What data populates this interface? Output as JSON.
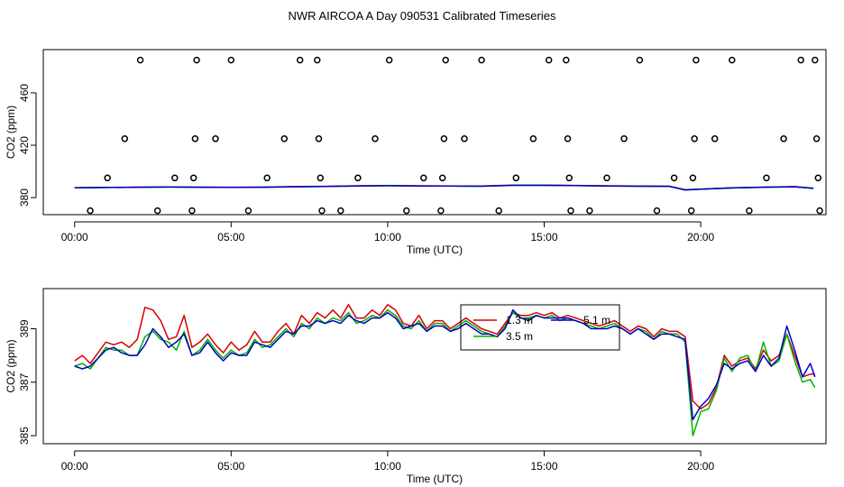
{
  "title": "NWR AIRCOA A  Day 090531  Calibrated Timeseries",
  "chart_data": [
    {
      "type": "line",
      "xlabel": "Time (UTC)",
      "ylabel": "CO2 (ppm)",
      "xlim": [
        -1.0,
        24.0
      ],
      "ylim": [
        367,
        493
      ],
      "xticks": [
        0,
        5,
        10,
        15,
        20
      ],
      "xtick_labels": [
        "00:00",
        "05:00",
        "10:00",
        "15:00",
        "20:00"
      ],
      "yticks": [
        380,
        420,
        460
      ],
      "ytick_labels": [
        "380",
        "420",
        "460"
      ],
      "series": [
        {
          "name": "1.3 m",
          "color": "#d40000",
          "x": [
            0,
            1,
            2,
            3,
            4,
            5,
            6,
            7,
            8,
            9,
            10,
            11,
            12,
            13,
            14,
            15,
            16,
            17,
            18,
            19,
            19.5,
            20,
            21,
            22,
            23,
            23.6
          ],
          "values": [
            387.6,
            387.8,
            388.0,
            388.2,
            388.0,
            387.9,
            388.0,
            388.4,
            388.6,
            389.0,
            389.2,
            389.0,
            388.9,
            388.8,
            389.5,
            389.5,
            389.3,
            389.0,
            388.8,
            388.7,
            386.0,
            386.5,
            387.5,
            388.0,
            388.4,
            387.2
          ]
        },
        {
          "name": "3.5 m",
          "color": "#00b000",
          "x": [
            0,
            1,
            2,
            3,
            4,
            5,
            6,
            7,
            8,
            9,
            10,
            11,
            12,
            13,
            14,
            15,
            16,
            17,
            18,
            19,
            19.5,
            20,
            21,
            22,
            23,
            23.6
          ],
          "values": [
            387.5,
            387.7,
            387.9,
            388.1,
            387.9,
            387.8,
            387.9,
            388.3,
            388.5,
            388.9,
            389.1,
            388.9,
            388.8,
            388.7,
            389.4,
            389.4,
            389.2,
            388.9,
            388.7,
            388.6,
            385.8,
            386.4,
            387.4,
            387.9,
            388.3,
            387.0
          ]
        },
        {
          "name": "5.1 m",
          "color": "#0000c8",
          "x": [
            0,
            1,
            2,
            3,
            4,
            5,
            6,
            7,
            8,
            9,
            10,
            11,
            12,
            13,
            14,
            15,
            16,
            17,
            18,
            19,
            19.5,
            20,
            21,
            22,
            23,
            23.6
          ],
          "values": [
            387.5,
            387.7,
            387.9,
            388.1,
            387.9,
            387.8,
            387.9,
            388.3,
            388.5,
            388.9,
            389.1,
            388.9,
            388.8,
            388.7,
            389.4,
            389.4,
            389.2,
            388.9,
            388.7,
            388.6,
            385.9,
            386.4,
            387.4,
            387.9,
            388.3,
            387.1
          ]
        }
      ],
      "markers": {
        "type": "scatter",
        "marker": "open-circle",
        "x": [
          0.5,
          1.05,
          1.6,
          2.1,
          2.65,
          3.2,
          3.75,
          3.8,
          3.85,
          3.9,
          4.5,
          5.0,
          5.55,
          6.15,
          6.7,
          7.2,
          7.75,
          7.8,
          7.85,
          7.9,
          8.5,
          9.05,
          9.6,
          10.05,
          10.6,
          11.15,
          11.7,
          11.75,
          11.8,
          11.85,
          12.45,
          13.0,
          13.55,
          14.1,
          14.65,
          15.15,
          15.7,
          15.75,
          15.8,
          15.85,
          16.45,
          17.0,
          17.55,
          18.05,
          18.6,
          19.15,
          19.7,
          19.75,
          19.8,
          19.85,
          20.45,
          21.0,
          21.55,
          22.1,
          22.65,
          23.2,
          23.65,
          23.7,
          23.75,
          23.8
        ],
        "values": [
          370,
          395,
          425,
          485,
          370,
          395,
          370,
          395,
          425,
          485,
          425,
          485,
          370,
          395,
          425,
          485,
          485,
          425,
          395,
          370,
          370,
          395,
          425,
          485,
          370,
          395,
          370,
          395,
          425,
          485,
          425,
          485,
          370,
          395,
          425,
          485,
          485,
          425,
          395,
          370,
          370,
          395,
          425,
          485,
          370,
          395,
          370,
          395,
          425,
          485,
          425,
          485,
          370,
          395,
          425,
          485,
          485,
          425,
          395,
          370
        ]
      }
    },
    {
      "type": "line",
      "xlabel": "Time (UTC)",
      "ylabel": "CO2 (ppm)",
      "xlim": [
        -1.0,
        24.0
      ],
      "ylim": [
        384.7,
        390.5
      ],
      "xticks": [
        0,
        5,
        10,
        15,
        20
      ],
      "xtick_labels": [
        "00:00",
        "05:00",
        "10:00",
        "15:00",
        "20:00"
      ],
      "yticks": [
        385,
        387,
        389
      ],
      "ytick_labels": [
        "385",
        "387",
        "389"
      ],
      "legend_position": "top-center",
      "series": [
        {
          "name": "1.3 m",
          "color": "#d40000",
          "x": [
            0,
            0.25,
            0.5,
            0.75,
            1.0,
            1.25,
            1.5,
            1.75,
            2.0,
            2.25,
            2.5,
            2.75,
            3.0,
            3.25,
            3.5,
            3.75,
            4.0,
            4.25,
            4.5,
            4.75,
            5.0,
            5.25,
            5.5,
            5.75,
            6.0,
            6.25,
            6.5,
            6.75,
            7.0,
            7.25,
            7.5,
            7.75,
            8.0,
            8.25,
            8.5,
            8.75,
            9.0,
            9.25,
            9.5,
            9.75,
            10.0,
            10.25,
            10.5,
            10.75,
            11.0,
            11.25,
            11.5,
            11.75,
            12.0,
            12.25,
            12.5,
            12.75,
            13.0,
            13.25,
            13.5,
            13.75,
            14.0,
            14.25,
            14.5,
            14.75,
            15.0,
            15.25,
            15.5,
            15.75,
            16.0,
            16.25,
            16.5,
            16.75,
            17.0,
            17.25,
            17.5,
            17.75,
            18.0,
            18.25,
            18.5,
            18.75,
            19.0,
            19.25,
            19.5,
            19.75,
            20.0,
            20.25,
            20.5,
            20.75,
            21.0,
            21.25,
            21.5,
            21.75,
            22.0,
            22.25,
            22.5,
            22.75,
            23.0,
            23.25,
            23.5,
            23.65
          ],
          "values": [
            387.8,
            388.0,
            387.7,
            388.1,
            388.5,
            388.4,
            388.5,
            388.3,
            388.6,
            389.8,
            389.7,
            389.3,
            388.6,
            388.7,
            389.5,
            388.3,
            388.5,
            388.8,
            388.4,
            388.1,
            388.5,
            388.2,
            388.4,
            388.9,
            388.5,
            388.5,
            388.9,
            389.2,
            388.8,
            389.5,
            389.2,
            389.6,
            389.4,
            389.7,
            389.4,
            389.9,
            389.4,
            389.4,
            389.7,
            389.5,
            389.9,
            389.7,
            389.2,
            389.1,
            389.5,
            389.0,
            389.3,
            389.3,
            389.0,
            389.2,
            389.4,
            389.2,
            389.0,
            388.9,
            388.8,
            389.2,
            389.6,
            389.5,
            389.5,
            389.6,
            389.5,
            389.6,
            389.4,
            389.5,
            389.4,
            389.3,
            389.2,
            389.1,
            389.2,
            389.3,
            389.1,
            388.9,
            389.1,
            389.0,
            388.7,
            389.0,
            388.9,
            388.9,
            388.7,
            386.3,
            386.0,
            386.2,
            386.8,
            388.0,
            387.6,
            387.8,
            387.9,
            387.5,
            388.2,
            387.8,
            388.0,
            388.8,
            388.0,
            387.2,
            387.3,
            387.3
          ]
        },
        {
          "name": "3.5 m",
          "color": "#00b000",
          "x": [
            0,
            0.25,
            0.5,
            0.75,
            1.0,
            1.25,
            1.5,
            1.75,
            2.0,
            2.25,
            2.5,
            2.75,
            3.0,
            3.25,
            3.5,
            3.75,
            4.0,
            4.25,
            4.5,
            4.75,
            5.0,
            5.25,
            5.5,
            5.75,
            6.0,
            6.25,
            6.5,
            6.75,
            7.0,
            7.25,
            7.5,
            7.75,
            8.0,
            8.25,
            8.5,
            8.75,
            9.0,
            9.25,
            9.5,
            9.75,
            10.0,
            10.25,
            10.5,
            10.75,
            11.0,
            11.25,
            11.5,
            11.75,
            12.0,
            12.25,
            12.5,
            12.75,
            13.0,
            13.25,
            13.5,
            13.75,
            14.0,
            14.25,
            14.5,
            14.75,
            15.0,
            15.25,
            15.5,
            15.75,
            16.0,
            16.25,
            16.5,
            16.75,
            17.0,
            17.25,
            17.5,
            17.75,
            18.0,
            18.25,
            18.5,
            18.75,
            19.0,
            19.25,
            19.5,
            19.75,
            20.0,
            20.25,
            20.5,
            20.75,
            21.0,
            21.25,
            21.5,
            21.75,
            22.0,
            22.25,
            22.5,
            22.75,
            23.0,
            23.25,
            23.5,
            23.65
          ],
          "values": [
            387.6,
            387.7,
            387.5,
            387.9,
            388.3,
            388.2,
            388.2,
            388.0,
            388.0,
            388.7,
            388.9,
            388.6,
            388.5,
            388.2,
            388.9,
            388.0,
            388.2,
            388.6,
            388.2,
            387.9,
            388.2,
            388.0,
            388.1,
            388.6,
            388.3,
            388.4,
            388.7,
            389.0,
            388.7,
            389.2,
            389.0,
            389.4,
            389.2,
            389.4,
            389.3,
            389.6,
            389.2,
            389.3,
            389.5,
            389.4,
            389.7,
            389.5,
            389.1,
            389.0,
            389.3,
            388.9,
            389.2,
            389.2,
            388.9,
            389.1,
            389.3,
            389.1,
            388.9,
            388.8,
            388.7,
            389.1,
            389.6,
            389.4,
            389.4,
            389.5,
            389.4,
            389.5,
            389.3,
            389.4,
            389.3,
            389.2,
            389.1,
            389.0,
            389.1,
            389.2,
            389.0,
            388.8,
            389.0,
            388.9,
            388.6,
            388.9,
            388.8,
            388.8,
            388.5,
            385.0,
            385.9,
            386.0,
            386.7,
            387.9,
            387.4,
            387.9,
            388.0,
            387.4,
            388.5,
            387.6,
            387.8,
            388.8,
            387.8,
            387.0,
            387.1,
            386.8
          ]
        },
        {
          "name": "5.1 m",
          "color": "#0000c8",
          "x": [
            0,
            0.25,
            0.5,
            0.75,
            1.0,
            1.25,
            1.5,
            1.75,
            2.0,
            2.25,
            2.5,
            2.75,
            3.0,
            3.25,
            3.5,
            3.75,
            4.0,
            4.25,
            4.5,
            4.75,
            5.0,
            5.25,
            5.5,
            5.75,
            6.0,
            6.25,
            6.5,
            6.75,
            7.0,
            7.25,
            7.5,
            7.75,
            8.0,
            8.25,
            8.5,
            8.75,
            9.0,
            9.25,
            9.5,
            9.75,
            10.0,
            10.25,
            10.5,
            10.75,
            11.0,
            11.25,
            11.5,
            11.75,
            12.0,
            12.25,
            12.5,
            12.75,
            13.0,
            13.25,
            13.5,
            13.75,
            14.0,
            14.25,
            14.5,
            14.75,
            15.0,
            15.25,
            15.5,
            15.75,
            16.0,
            16.25,
            16.5,
            16.75,
            17.0,
            17.25,
            17.5,
            17.75,
            18.0,
            18.25,
            18.5,
            18.75,
            19.0,
            19.25,
            19.5,
            19.75,
            20.0,
            20.25,
            20.5,
            20.75,
            21.0,
            21.25,
            21.5,
            21.75,
            22.0,
            22.25,
            22.5,
            22.75,
            23.0,
            23.25,
            23.5,
            23.65
          ],
          "values": [
            387.6,
            387.5,
            387.6,
            387.9,
            388.2,
            388.3,
            388.1,
            388.0,
            388.0,
            388.4,
            389.0,
            388.7,
            388.3,
            388.5,
            388.8,
            388.0,
            388.1,
            388.5,
            388.1,
            387.8,
            388.1,
            388.0,
            388.0,
            388.5,
            388.4,
            388.3,
            388.6,
            388.9,
            388.8,
            389.1,
            389.1,
            389.3,
            389.2,
            389.3,
            389.2,
            389.5,
            389.3,
            389.2,
            389.4,
            389.4,
            389.6,
            389.4,
            389.0,
            389.1,
            389.2,
            388.9,
            389.1,
            389.1,
            388.9,
            389.0,
            389.2,
            389.0,
            388.8,
            388.8,
            388.7,
            389.0,
            389.7,
            389.4,
            389.3,
            389.5,
            389.4,
            389.4,
            389.4,
            389.4,
            389.3,
            389.2,
            389.0,
            389.0,
            389.0,
            389.1,
            389.0,
            388.8,
            389.0,
            388.8,
            388.6,
            388.8,
            388.8,
            388.7,
            388.6,
            385.6,
            386.1,
            386.4,
            386.9,
            387.7,
            387.5,
            387.7,
            387.8,
            387.4,
            388.0,
            387.6,
            387.9,
            389.1,
            388.2,
            387.2,
            387.7,
            387.2
          ]
        }
      ]
    }
  ]
}
